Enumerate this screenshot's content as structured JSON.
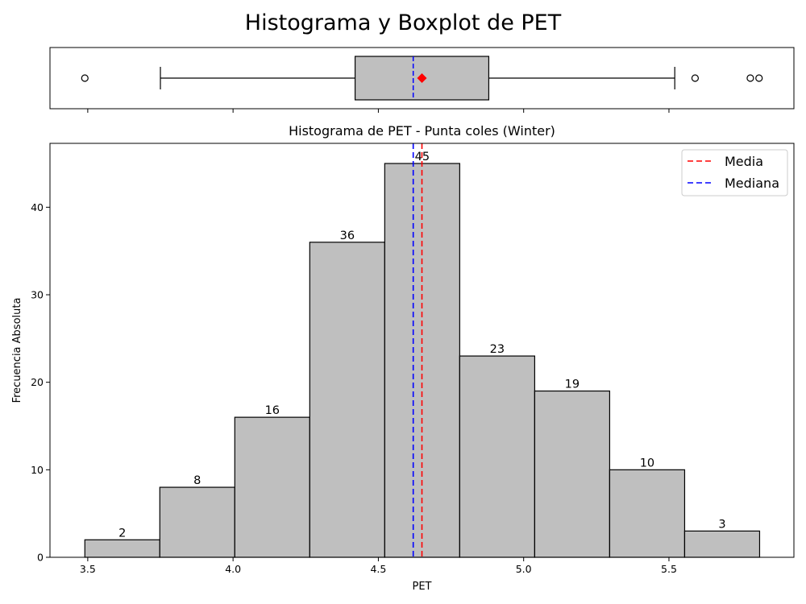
{
  "figure": {
    "suptitle": "Histograma y Boxplot de PET"
  },
  "chart_data": [
    {
      "type": "box",
      "orientation": "horizontal",
      "variable": "PET",
      "whisker_low": 3.75,
      "q1": 4.42,
      "median": 4.62,
      "mean": 4.65,
      "q3": 4.88,
      "whisker_high": 5.52,
      "outliers": [
        3.49,
        5.59,
        5.78,
        5.81
      ],
      "xlim": [
        3.37,
        5.93
      ],
      "colors": {
        "box": "#bfbfbf",
        "median": "#0000ff",
        "mean": "#ff0000"
      }
    },
    {
      "type": "bar",
      "title": "Histograma de PET - Punta coles (Winter)",
      "xlabel": "PET",
      "ylabel": "Frecuencia Absoluta",
      "bin_edges": [
        3.49,
        3.748,
        4.006,
        4.264,
        4.522,
        4.78,
        5.038,
        5.296,
        5.554,
        5.812
      ],
      "values": [
        2,
        8,
        16,
        36,
        45,
        23,
        19,
        10,
        3
      ],
      "value_labels": [
        "2",
        "8",
        "16",
        "36",
        "45",
        "23",
        "19",
        "10",
        "3"
      ],
      "xlim": [
        3.37,
        5.93
      ],
      "ylim": [
        0,
        47.3
      ],
      "xticks": [
        3.5,
        4.0,
        4.5,
        5.0,
        5.5
      ],
      "xtick_labels": [
        "3.5",
        "4.0",
        "4.5",
        "5.0",
        "5.5"
      ],
      "yticks": [
        0,
        10,
        20,
        30,
        40
      ],
      "ytick_labels": [
        "0",
        "10",
        "20",
        "30",
        "40"
      ],
      "lines": [
        {
          "name": "Media",
          "x": 4.65,
          "color": "#ff0000",
          "style": "dashed"
        },
        {
          "name": "Mediana",
          "x": 4.62,
          "color": "#0000ff",
          "style": "dashed"
        }
      ],
      "legend": {
        "position": "top-right",
        "entries": [
          {
            "label": "Media",
            "color": "#ff0000"
          },
          {
            "label": "Mediana",
            "color": "#0000ff"
          }
        ]
      },
      "grid": false,
      "colors": {
        "bar_fill": "#bfbfbf",
        "bar_edge": "#000000"
      }
    }
  ]
}
